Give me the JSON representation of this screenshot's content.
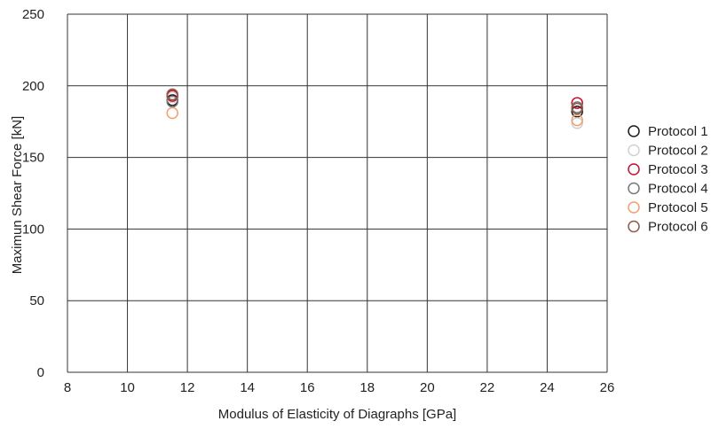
{
  "chart_data": {
    "type": "scatter",
    "xlabel": "Modulus of Elasticity of Diagraphs [GPa]",
    "ylabel": "Maximun Shear Force [kN]",
    "xlim": [
      8,
      26
    ],
    "ylim": [
      0,
      250
    ],
    "xticks": [
      "8",
      "10",
      "12",
      "14",
      "16",
      "18",
      "20",
      "22",
      "24",
      "26"
    ],
    "yticks": [
      "0",
      "50",
      "100",
      "150",
      "200",
      "250"
    ],
    "grid": true,
    "legend_position": "right",
    "series": [
      {
        "name": "Protocol 1",
        "color": "#1a1a1a",
        "x": [
          11.5,
          25.0
        ],
        "y": [
          190,
          182
        ]
      },
      {
        "name": "Protocol 2",
        "color": "#d0d0d0",
        "x": [
          11.5,
          25.0
        ],
        "y": [
          192,
          174
        ]
      },
      {
        "name": "Protocol 3",
        "color": "#c8102e",
        "x": [
          11.5,
          25.0
        ],
        "y": [
          193,
          188
        ]
      },
      {
        "name": "Protocol 4",
        "color": "#777777",
        "x": [
          11.5,
          25.0
        ],
        "y": [
          189,
          185
        ]
      },
      {
        "name": "Protocol 5",
        "color": "#f0a070",
        "x": [
          11.5,
          25.0
        ],
        "y": [
          181,
          176
        ]
      },
      {
        "name": "Protocol 6",
        "color": "#8b5a4a",
        "x": [
          11.5,
          25.0
        ],
        "y": [
          194,
          184
        ]
      }
    ]
  }
}
